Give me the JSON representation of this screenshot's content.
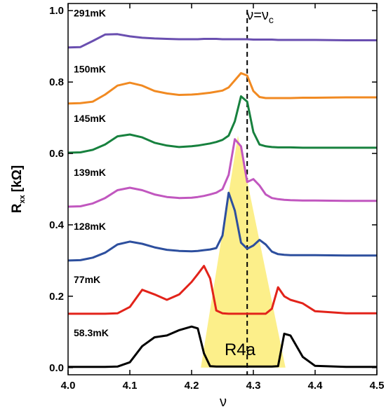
{
  "chart_data": {
    "type": "line",
    "xlabel": "ν",
    "ylabel": "R",
    "ylabel_sub": "xx",
    "ylabel_unit": "[kΩ]",
    "xlim": [
      4.0,
      4.5
    ],
    "ylim": [
      -0.02,
      1.02
    ],
    "xticks": [
      {
        "value": 4.0,
        "label": "4.0"
      },
      4.1,
      4.2,
      4.3,
      4.4,
      4.5
    ],
    "yticks": [
      {
        "value": 0,
        "label": "0.0"
      },
      0.2,
      0.4,
      0.6,
      0.8,
      {
        "value": 1,
        "label": "1.0"
      }
    ],
    "shaded_region": {
      "x": [
        4.215,
        4.275,
        4.352
      ],
      "y": [
        0,
        0.65,
        0
      ],
      "color": "#fcef8a",
      "label": "R4a"
    },
    "vline": {
      "x": 4.29,
      "label": "ν=ν",
      "label_sub": "c"
    },
    "x": [
      4.0,
      4.02,
      4.04,
      4.06,
      4.08,
      4.1,
      4.12,
      4.14,
      4.16,
      4.18,
      4.2,
      4.21,
      4.22,
      4.23,
      4.24,
      4.25,
      4.26,
      4.27,
      4.28,
      4.29,
      4.3,
      4.31,
      4.32,
      4.33,
      4.34,
      4.35,
      4.36,
      4.38,
      4.4,
      4.45,
      4.5
    ],
    "series": [
      {
        "name": "291mK",
        "color": "#6a4fb0",
        "values": [
          0.897,
          0.898,
          0.915,
          0.933,
          0.934,
          0.928,
          0.924,
          0.922,
          0.921,
          0.92,
          0.92,
          0.92,
          0.921,
          0.921,
          0.921,
          0.92,
          0.92,
          0.92,
          0.92,
          0.92,
          0.919,
          0.919,
          0.919,
          0.919,
          0.918,
          0.918,
          0.918,
          0.918,
          0.918,
          0.917,
          0.917
        ]
      },
      {
        "name": "150mK",
        "color": "#f18a22",
        "values": [
          0.74,
          0.741,
          0.745,
          0.765,
          0.79,
          0.798,
          0.79,
          0.775,
          0.768,
          0.764,
          0.765,
          0.766,
          0.768,
          0.77,
          0.773,
          0.776,
          0.785,
          0.805,
          0.825,
          0.818,
          0.775,
          0.758,
          0.755,
          0.755,
          0.755,
          0.755,
          0.755,
          0.756,
          0.756,
          0.757,
          0.757
        ]
      },
      {
        "name": "145mK",
        "color": "#17813e",
        "values": [
          0.602,
          0.603,
          0.61,
          0.625,
          0.648,
          0.653,
          0.645,
          0.63,
          0.622,
          0.618,
          0.62,
          0.622,
          0.625,
          0.628,
          0.632,
          0.638,
          0.65,
          0.69,
          0.76,
          0.745,
          0.66,
          0.625,
          0.62,
          0.618,
          0.617,
          0.617,
          0.617,
          0.616,
          0.616,
          0.616,
          0.616
        ]
      },
      {
        "name": "139mK",
        "color": "#c157bf",
        "values": [
          0.451,
          0.452,
          0.46,
          0.475,
          0.497,
          0.504,
          0.497,
          0.485,
          0.478,
          0.475,
          0.476,
          0.478,
          0.481,
          0.485,
          0.49,
          0.5,
          0.54,
          0.64,
          0.62,
          0.52,
          0.528,
          0.51,
          0.485,
          0.475,
          0.472,
          0.47,
          0.469,
          0.468,
          0.468,
          0.467,
          0.467
        ]
      },
      {
        "name": "128mK",
        "color": "#2d4f9e",
        "values": [
          0.3,
          0.301,
          0.308,
          0.322,
          0.345,
          0.353,
          0.347,
          0.337,
          0.33,
          0.327,
          0.326,
          0.327,
          0.329,
          0.331,
          0.335,
          0.37,
          0.49,
          0.44,
          0.35,
          0.333,
          0.342,
          0.358,
          0.345,
          0.325,
          0.318,
          0.316,
          0.315,
          0.315,
          0.315,
          0.314,
          0.314
        ]
      },
      {
        "name": "77mK",
        "color": "#e2231a",
        "values": [
          0.151,
          0.151,
          0.151,
          0.151,
          0.152,
          0.17,
          0.218,
          0.205,
          0.19,
          0.205,
          0.24,
          0.262,
          0.285,
          0.25,
          0.16,
          0.152,
          0.151,
          0.151,
          0.151,
          0.151,
          0.151,
          0.151,
          0.151,
          0.165,
          0.225,
          0.2,
          0.19,
          0.18,
          0.158,
          0.152,
          0.152
        ]
      },
      {
        "name": "58.3mK",
        "color": "#000000",
        "values": [
          0.002,
          0.002,
          0.002,
          0.002,
          0.003,
          0.015,
          0.06,
          0.085,
          0.09,
          0.105,
          0.115,
          0.11,
          0.04,
          0.004,
          0.003,
          0.003,
          0.003,
          0.003,
          0.003,
          0.003,
          0.003,
          0.003,
          0.003,
          0.003,
          0.004,
          0.095,
          0.09,
          0.03,
          0.005,
          0.002,
          0.002
        ]
      }
    ]
  }
}
